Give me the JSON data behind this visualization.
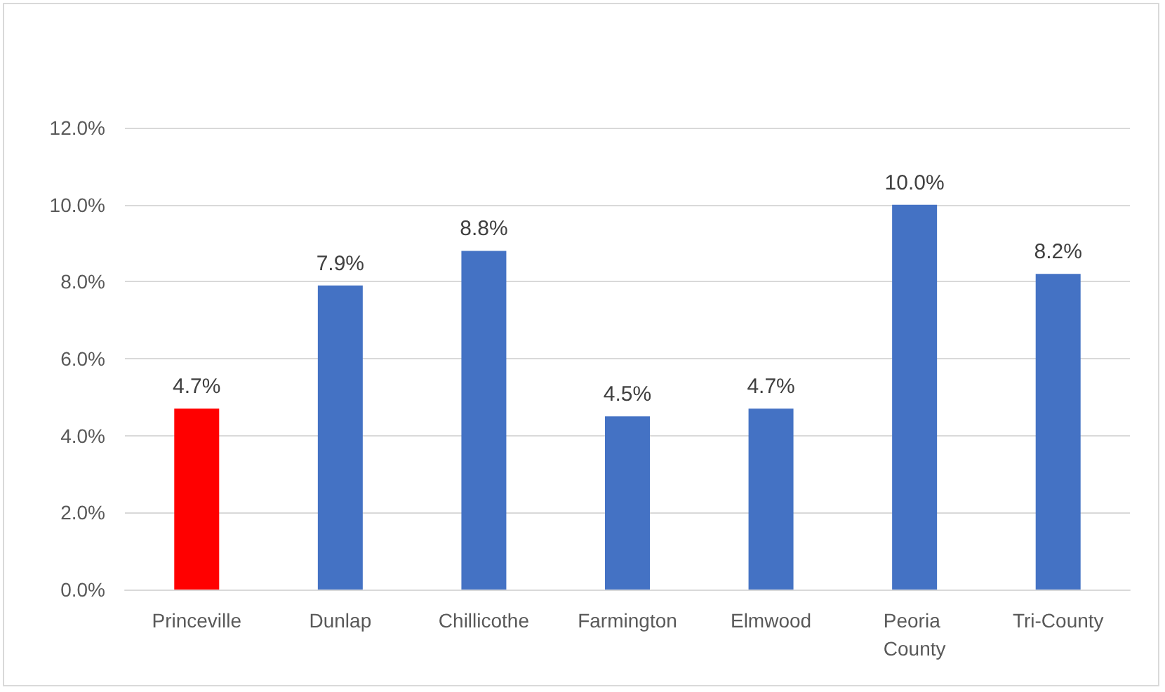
{
  "chart_data": {
    "type": "bar",
    "categories": [
      "Princeville",
      "Dunlap",
      "Chillicothe",
      "Farmington",
      "Elmwood",
      "Peoria County",
      "Tri-County"
    ],
    "values": [
      4.7,
      7.9,
      8.8,
      4.5,
      4.7,
      10.0,
      8.2
    ],
    "colors": [
      "#ff0000",
      "#4472c4",
      "#4472c4",
      "#4472c4",
      "#4472c4",
      "#4472c4",
      "#4472c4"
    ],
    "value_labels": [
      "4.7%",
      "7.9%",
      "8.8%",
      "4.5%",
      "4.7%",
      "10.0%",
      "8.2%"
    ],
    "ylim": [
      0,
      12
    ],
    "yticks": [
      {
        "value": 0,
        "label": "0.0%"
      },
      {
        "value": 2,
        "label": "2.0%"
      },
      {
        "value": 4,
        "label": "4.0%"
      },
      {
        "value": 6,
        "label": "6.0%"
      },
      {
        "value": 8,
        "label": "8.0%"
      },
      {
        "value": 10,
        "label": "10.0%"
      },
      {
        "value": 12,
        "label": "12.0%"
      }
    ],
    "grid": "y"
  }
}
